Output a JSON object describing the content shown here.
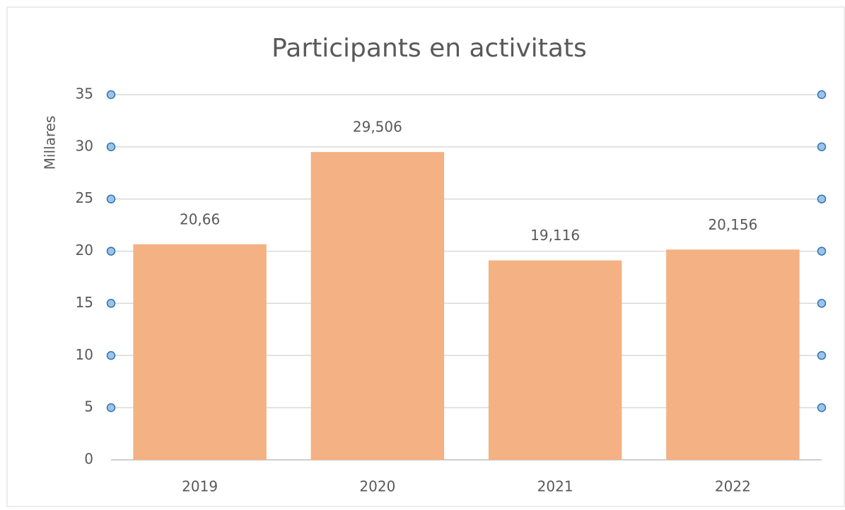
{
  "chart_data": {
    "type": "bar",
    "title": "Participants en activitats",
    "y_label": "Millares",
    "categories": [
      "2019",
      "2020",
      "2021",
      "2022"
    ],
    "values": [
      20.66,
      29.506,
      19.116,
      20.156
    ],
    "value_labels": [
      "20,66",
      "29,506",
      "19,116",
      "20,156"
    ],
    "color": "#f4b183",
    "ylim": [
      0,
      35
    ],
    "yticks": [
      0,
      5,
      10,
      15,
      20,
      25,
      30,
      35
    ],
    "grid": true
  }
}
